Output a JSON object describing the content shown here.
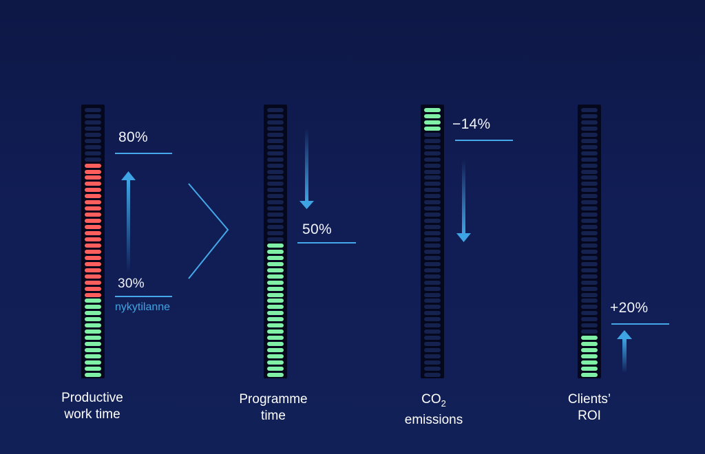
{
  "colors": {
    "accent": "#45a8ea",
    "green": "#7ff0a6",
    "red": "#ff5f5c",
    "empty": "#15214f"
  },
  "metrics": [
    {
      "label_line1": "Productive",
      "label_line2": "work time",
      "values": [
        "80%",
        "30%"
      ],
      "note": "nykytilanne",
      "green_fraction": 0.3,
      "red_fraction": 0.5,
      "arrow": "up-arrow-icon"
    },
    {
      "label_line1": "Programme",
      "label_line2": "time",
      "values": [
        "50%"
      ],
      "green_fraction": 0.5,
      "arrow": "down-arrow-icon"
    },
    {
      "label_line1": "CO",
      "label_sub": "2",
      "label_line2": "emissions",
      "values": [
        "−14%"
      ],
      "top_green_fraction": 0.1,
      "arrow": "down-arrow-icon"
    },
    {
      "label_line1": "Clients’",
      "label_line2": "ROI",
      "values": [
        "+20%"
      ],
      "green_fraction": 0.16,
      "arrow": "up-arrow-icon"
    }
  ],
  "decor": {
    "chevron": "chevron-right-icon"
  }
}
